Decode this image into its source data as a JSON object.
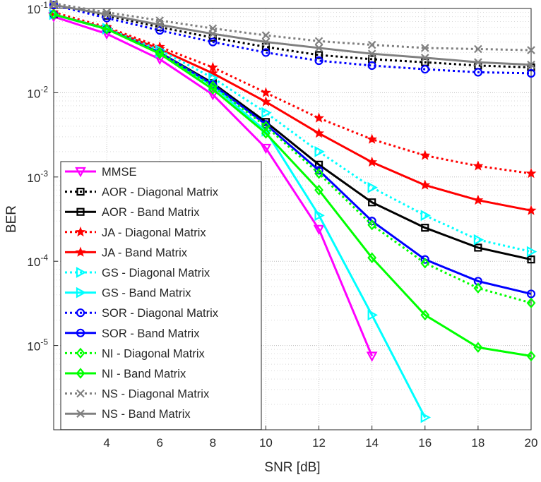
{
  "chart_data": {
    "type": "line",
    "title": "",
    "xlabel": "SNR [dB]",
    "ylabel": "BER",
    "xscale": "linear",
    "yscale": "log",
    "xlim": [
      2,
      20
    ],
    "ylim": [
      1e-06,
      0.1
    ],
    "grid": true,
    "legend_position": "bottom-left",
    "x_ticks": [
      4,
      6,
      8,
      10,
      12,
      14,
      16,
      18,
      20
    ],
    "x_tick_labels": [
      "4",
      "6",
      "8",
      "10",
      "12",
      "14",
      "16",
      "18",
      "20"
    ],
    "y_ticks": [
      0.1,
      0.01,
      0.001,
      0.0001,
      1e-05
    ],
    "y_tick_labels": [
      {
        "base": "10",
        "exp": "-1"
      },
      {
        "base": "10",
        "exp": "-2"
      },
      {
        "base": "10",
        "exp": "-3"
      },
      {
        "base": "10",
        "exp": "-4"
      },
      {
        "base": "10",
        "exp": "-5"
      }
    ],
    "series": [
      {
        "name": "MMSE",
        "color": "#ff00ff",
        "dashed": false,
        "marker": "triangle-down",
        "x": [
          2,
          4,
          6,
          8,
          10,
          12,
          14
        ],
        "y": [
          0.08,
          0.05,
          0.025,
          0.0095,
          0.0022,
          0.00024,
          7.5e-06
        ]
      },
      {
        "name": "AOR - Diagonal Matrix",
        "color": "#000000",
        "dashed": true,
        "marker": "square",
        "x": [
          2,
          4,
          6,
          8,
          10,
          12,
          14,
          16,
          18,
          20
        ],
        "y": [
          0.11,
          0.082,
          0.06,
          0.045,
          0.035,
          0.028,
          0.025,
          0.023,
          0.021,
          0.02
        ]
      },
      {
        "name": "AOR - Band Matrix",
        "color": "#000000",
        "dashed": false,
        "marker": "square",
        "x": [
          2,
          4,
          6,
          8,
          10,
          12,
          14,
          16,
          18,
          20
        ],
        "y": [
          0.085,
          0.057,
          0.03,
          0.013,
          0.0045,
          0.0014,
          0.0005,
          0.00025,
          0.000145,
          0.000105
        ]
      },
      {
        "name": "JA - Diagonal Matrix",
        "color": "#ff0000",
        "dashed": true,
        "marker": "star",
        "x": [
          2,
          4,
          6,
          8,
          10,
          12,
          14,
          16,
          18,
          20
        ],
        "y": [
          0.09,
          0.06,
          0.035,
          0.02,
          0.01,
          0.005,
          0.0028,
          0.0018,
          0.00135,
          0.0011
        ]
      },
      {
        "name": "JA - Band Matrix",
        "color": "#ff0000",
        "dashed": false,
        "marker": "star",
        "x": [
          2,
          4,
          6,
          8,
          10,
          12,
          14,
          16,
          18,
          20
        ],
        "y": [
          0.085,
          0.058,
          0.033,
          0.017,
          0.0078,
          0.0033,
          0.0015,
          0.0008,
          0.00053,
          0.0004
        ]
      },
      {
        "name": "GS - Diagonal Matrix",
        "color": "#00ffff",
        "dashed": true,
        "marker": "triangle-right",
        "x": [
          2,
          4,
          6,
          8,
          10,
          12,
          14,
          16,
          18,
          20
        ],
        "y": [
          0.085,
          0.058,
          0.032,
          0.015,
          0.0058,
          0.002,
          0.00075,
          0.00035,
          0.00018,
          0.00013
        ]
      },
      {
        "name": "GS - Band Matrix",
        "color": "#00ffff",
        "dashed": false,
        "marker": "triangle-right",
        "x": [
          2,
          4,
          6,
          8,
          10,
          12,
          14,
          16
        ],
        "y": [
          0.085,
          0.057,
          0.03,
          0.012,
          0.0035,
          0.00035,
          2.3e-05,
          1.4e-06
        ]
      },
      {
        "name": "SOR - Diagonal Matrix",
        "color": "#0000ff",
        "dashed": true,
        "marker": "circle",
        "x": [
          2,
          4,
          6,
          8,
          10,
          12,
          14,
          16,
          18,
          20
        ],
        "y": [
          0.11,
          0.077,
          0.055,
          0.04,
          0.03,
          0.024,
          0.021,
          0.019,
          0.0175,
          0.017
        ]
      },
      {
        "name": "SOR - Band Matrix",
        "color": "#0000ff",
        "dashed": false,
        "marker": "circle",
        "x": [
          2,
          4,
          6,
          8,
          10,
          12,
          14,
          16,
          18,
          20
        ],
        "y": [
          0.085,
          0.057,
          0.03,
          0.0125,
          0.0042,
          0.0012,
          0.0003,
          0.000105,
          5.8e-05,
          4.1e-05
        ]
      },
      {
        "name": "NI - Diagonal Matrix",
        "color": "#00ff00",
        "dashed": true,
        "marker": "diamond",
        "x": [
          2,
          4,
          6,
          8,
          10,
          12,
          14,
          16,
          18,
          20
        ],
        "y": [
          0.085,
          0.057,
          0.03,
          0.012,
          0.004,
          0.0011,
          0.00027,
          9.5e-05,
          4.8e-05,
          3.2e-05
        ]
      },
      {
        "name": "NI - Band Matrix",
        "color": "#00ff00",
        "dashed": false,
        "marker": "diamond",
        "x": [
          2,
          4,
          6,
          8,
          10,
          12,
          14,
          16,
          18,
          20
        ],
        "y": [
          0.085,
          0.057,
          0.029,
          0.011,
          0.0033,
          0.0007,
          0.00011,
          2.3e-05,
          9.5e-06,
          7.5e-06
        ]
      },
      {
        "name": "NS - Diagonal Matrix",
        "color": "#808080",
        "dashed": true,
        "marker": "x",
        "x": [
          2,
          4,
          6,
          8,
          10,
          12,
          14,
          16,
          18,
          20
        ],
        "y": [
          0.115,
          0.09,
          0.072,
          0.058,
          0.048,
          0.041,
          0.037,
          0.034,
          0.033,
          0.032
        ]
      },
      {
        "name": "NS - Band Matrix",
        "color": "#808080",
        "dashed": false,
        "marker": "x",
        "x": [
          2,
          4,
          6,
          8,
          10,
          12,
          14,
          16,
          18,
          20
        ],
        "y": [
          0.11,
          0.085,
          0.064,
          0.05,
          0.04,
          0.034,
          0.029,
          0.026,
          0.023,
          0.0215
        ]
      }
    ]
  }
}
